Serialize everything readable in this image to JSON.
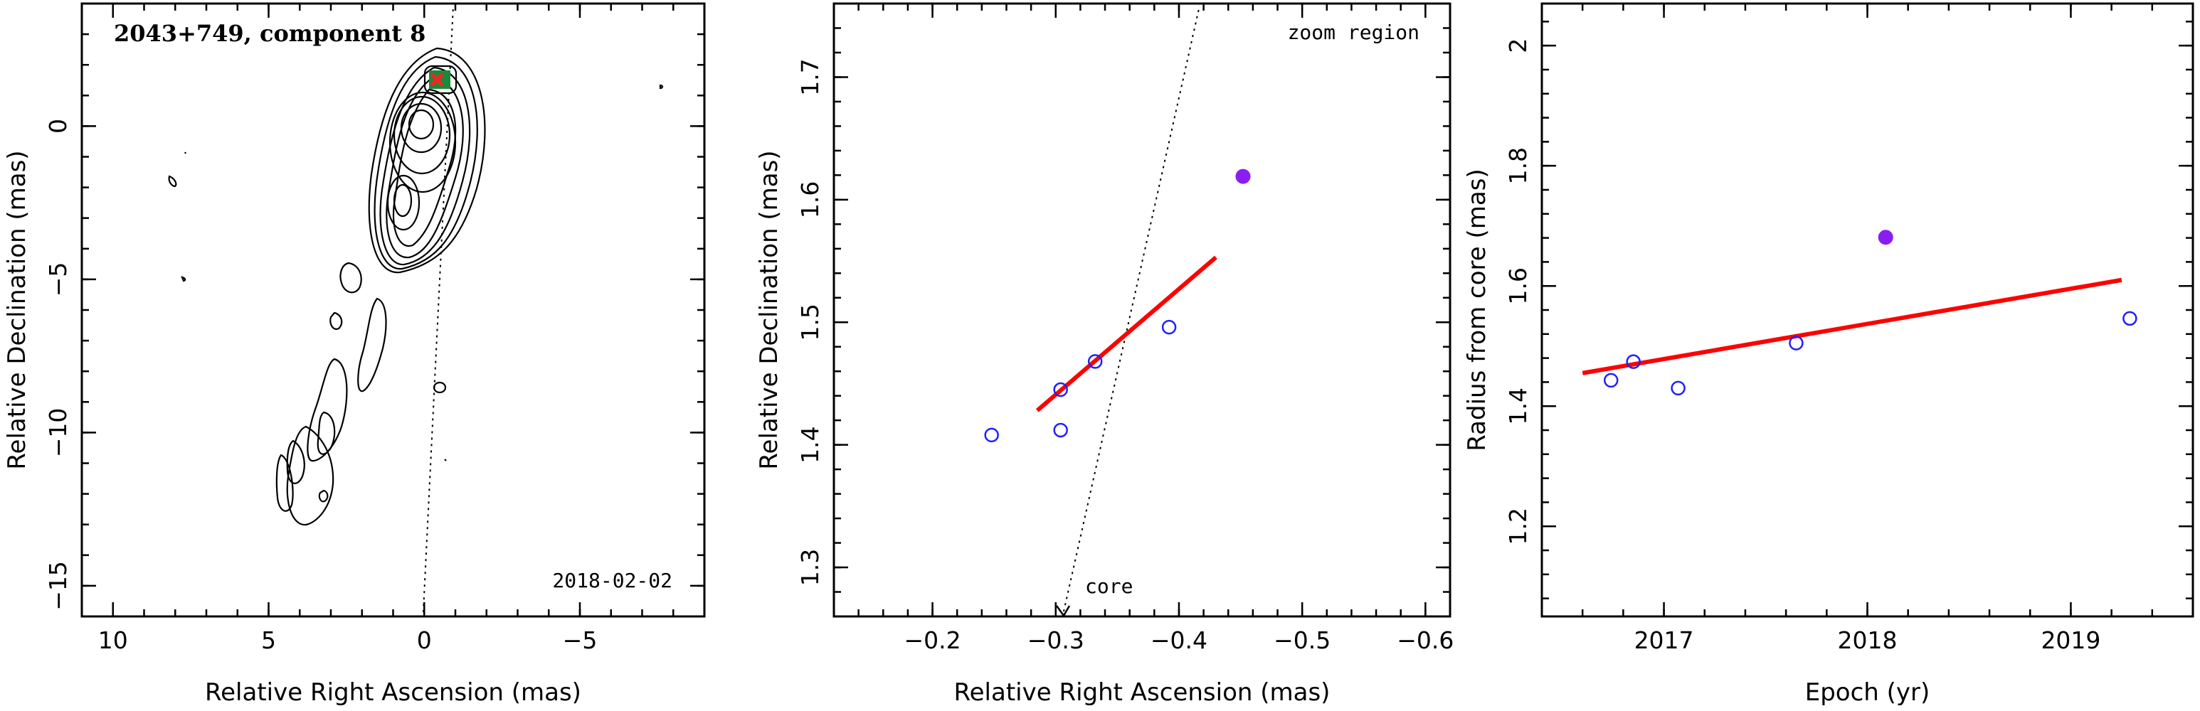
{
  "colors": {
    "fit_line": "#ff0000",
    "open_marker": "#2020ff",
    "filled_marker": "#8a1ef0",
    "component_box": "#1a8a3a"
  },
  "chart_data": [
    {
      "type": "contour",
      "title": "2043+749, component 8",
      "date_label": "2018-02-02",
      "xlabel": "Relative Right Ascension (mas)",
      "ylabel": "Relative Declination (mas)",
      "xlim": [
        11,
        -9
      ],
      "ylim": [
        -16,
        4
      ],
      "xticks": [
        10,
        5,
        0,
        -5
      ],
      "xtick_labels": [
        "10",
        "5",
        "0",
        "−5"
      ],
      "yticks": [
        -15,
        -10,
        -5,
        0
      ],
      "ytick_labels": [
        "−15",
        "−10",
        "−5",
        "0"
      ],
      "component_position": [
        -0.45,
        1.6
      ],
      "core_position": [
        0,
        0
      ]
    },
    {
      "type": "scatter",
      "annotation_zoom": "zoom region",
      "annotation_core": "core",
      "xlabel": "Relative Right Ascension (mas)",
      "ylabel": "Relative Declination (mas)",
      "xlim": [
        -0.12,
        -0.62
      ],
      "ylim": [
        1.26,
        1.76
      ],
      "xticks": [
        -0.2,
        -0.3,
        -0.4,
        -0.5,
        -0.6
      ],
      "xtick_labels": [
        "−0.2",
        "−0.3",
        "−0.4",
        "−0.5",
        "−0.6"
      ],
      "yticks": [
        1.3,
        1.4,
        1.5,
        1.6,
        1.7
      ],
      "ytick_labels": [
        "1.3",
        "1.4",
        "1.5",
        "1.6",
        "1.7"
      ],
      "open_points": [
        {
          "x": -0.248,
          "y": 1.408
        },
        {
          "x": -0.304,
          "y": 1.445
        },
        {
          "x": -0.304,
          "y": 1.412
        },
        {
          "x": -0.332,
          "y": 1.468
        },
        {
          "x": -0.392,
          "y": 1.496
        }
      ],
      "filled_points": [
        {
          "x": -0.452,
          "y": 1.619
        }
      ],
      "fit_line": [
        {
          "x": -0.285,
          "y": 1.428
        },
        {
          "x": -0.43,
          "y": 1.553
        }
      ]
    },
    {
      "type": "scatter",
      "xlabel": "Epoch (yr)",
      "ylabel": "Radius from core (mas)",
      "xlim": [
        2016.4,
        2019.6
      ],
      "ylim": [
        1.05,
        2.07
      ],
      "xticks": [
        2017,
        2018,
        2019
      ],
      "xtick_labels": [
        "2017",
        "2018",
        "2019"
      ],
      "yticks": [
        1.2,
        1.4,
        1.6,
        1.8,
        2.0
      ],
      "ytick_labels": [
        "1.2",
        "1.4",
        "1.6",
        "1.8",
        "2"
      ],
      "open_points": [
        {
          "x": 2016.74,
          "y": 1.443
        },
        {
          "x": 2016.85,
          "y": 1.474
        },
        {
          "x": 2017.07,
          "y": 1.43
        },
        {
          "x": 2017.65,
          "y": 1.505
        },
        {
          "x": 2019.29,
          "y": 1.546
        }
      ],
      "filled_points": [
        {
          "x": 2018.09,
          "y": 1.681
        }
      ],
      "fit_line": [
        {
          "x": 2016.6,
          "y": 1.455
        },
        {
          "x": 2019.25,
          "y": 1.61
        }
      ]
    }
  ]
}
